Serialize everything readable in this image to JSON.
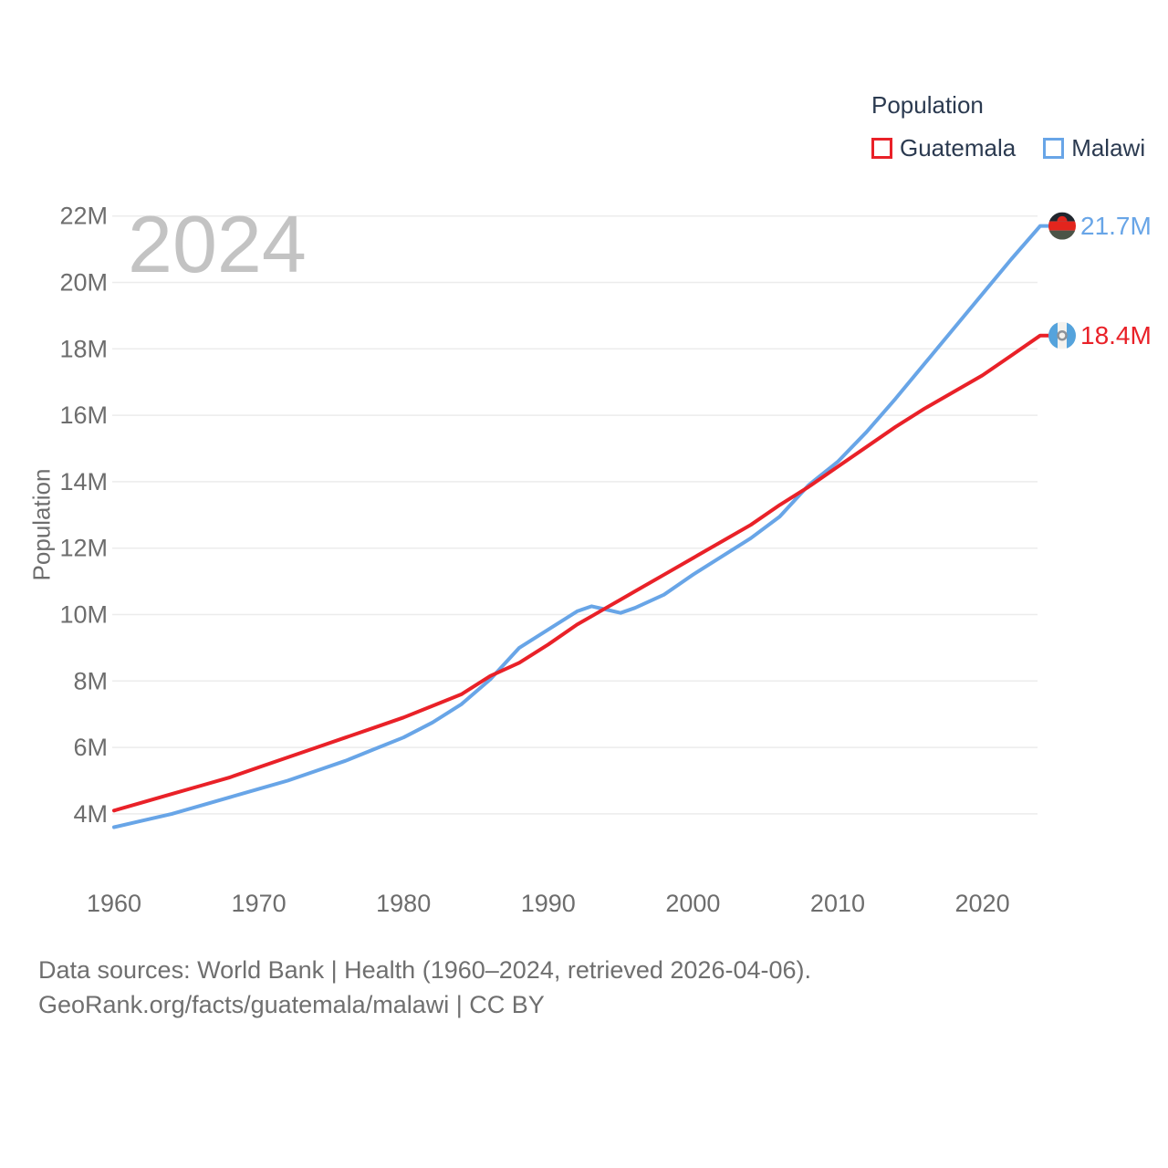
{
  "watermark": "2024",
  "legend": {
    "title": "Population",
    "items": [
      {
        "label": "Guatemala",
        "color": "#e92128"
      },
      {
        "label": "Malawi",
        "color": "#68a5e7"
      }
    ]
  },
  "footer": {
    "line1": "Data sources: World Bank | Health (1960–2024, retrieved 2026-04-06).",
    "line2": "GeoRank.org/facts/guatemala/malawi | CC BY"
  },
  "chart_data": {
    "type": "line",
    "title": "Population",
    "xlabel": "",
    "ylabel": "Population",
    "legend_position": "top-right",
    "grid": "horizontal",
    "gridline_color": "#ececec",
    "tick_color": "#6d6d6d",
    "watermark_year": "2024",
    "xlim": [
      1960,
      2024
    ],
    "ylim": [
      3.4,
      22.4
    ],
    "x_ticks": [
      "1960",
      "1970",
      "1980",
      "1990",
      "2000",
      "2010",
      "2020"
    ],
    "y_ticks": [
      {
        "value": 4,
        "label": "4M"
      },
      {
        "value": 6,
        "label": "6M"
      },
      {
        "value": 8,
        "label": "8M"
      },
      {
        "value": 10,
        "label": "10M"
      },
      {
        "value": 12,
        "label": "12M"
      },
      {
        "value": 14,
        "label": "14M"
      },
      {
        "value": 16,
        "label": "16M"
      },
      {
        "value": 18,
        "label": "18M"
      },
      {
        "value": 20,
        "label": "20M"
      },
      {
        "value": 22,
        "label": "22M"
      }
    ],
    "x": [
      1960,
      1962,
      1964,
      1966,
      1968,
      1970,
      1972,
      1974,
      1976,
      1978,
      1980,
      1982,
      1984,
      1986,
      1988,
      1990,
      1992,
      1993,
      1994,
      1995,
      1996,
      1998,
      2000,
      2002,
      2004,
      2006,
      2008,
      2010,
      2012,
      2014,
      2016,
      2018,
      2020,
      2022,
      2024
    ],
    "series": [
      {
        "name": "Malawi",
        "color": "#68a5e7",
        "flag": "malawi",
        "end_label": "21.7M",
        "values": [
          3.6,
          3.8,
          4.0,
          4.25,
          4.5,
          4.75,
          5.0,
          5.3,
          5.6,
          5.95,
          6.3,
          6.75,
          7.3,
          8.05,
          9.0,
          9.55,
          10.1,
          10.25,
          10.15,
          10.05,
          10.2,
          10.6,
          11.2,
          11.75,
          12.3,
          12.95,
          13.9,
          14.6,
          15.5,
          16.5,
          17.55,
          18.6,
          19.65,
          20.7,
          21.7
        ]
      },
      {
        "name": "Guatemala",
        "color": "#e92128",
        "flag": "guatemala",
        "end_label": "18.4M",
        "values": [
          4.1,
          4.35,
          4.6,
          4.85,
          5.1,
          5.4,
          5.7,
          6.0,
          6.3,
          6.6,
          6.9,
          7.25,
          7.6,
          8.15,
          8.55,
          9.1,
          9.7,
          9.95,
          10.2,
          10.45,
          10.7,
          11.2,
          11.7,
          12.2,
          12.7,
          13.3,
          13.85,
          14.45,
          15.05,
          15.65,
          16.2,
          16.7,
          17.2,
          17.8,
          18.4
        ]
      }
    ]
  }
}
